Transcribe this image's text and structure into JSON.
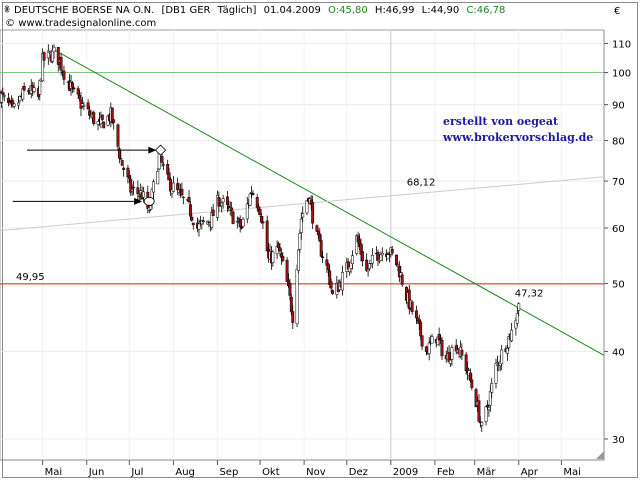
{
  "header": {
    "title": "DEUTSCHE BOERSE NA O.N.",
    "exchange": "[DB1 GER",
    "period": "Täglich]",
    "date": "01.04.2009",
    "open": "O:45,80",
    "high": "H:46,99",
    "low": "L:44,90",
    "close": "C:46,78",
    "website": "www.tradesignalonline.com",
    "currency": "€"
  },
  "credits": {
    "line1": "erstellt von oegeat",
    "line2": "www.brokervorschlag.de"
  },
  "colors": {
    "up_candle": "#ffffff",
    "down_candle": "#a01010",
    "trendline": "#1a8a1a",
    "support_line": "#e02010",
    "upper_line": "#7fc97f",
    "gray_line": "#cccccc",
    "arrow": "#000000",
    "credit_text": "#1a1aa0"
  },
  "chart_data": {
    "type": "candlestick",
    "yscale": "log",
    "ylim": [
      28,
      115
    ],
    "yticks": [
      30,
      40,
      50,
      60,
      70,
      80,
      90,
      100,
      110
    ],
    "xtick_labels": [
      "Mai",
      "Jun",
      "Jul",
      "Aug",
      "Sep",
      "Okt",
      "Nov",
      "Dez",
      "2009",
      "Feb",
      "Mär",
      "Apr",
      "Mai"
    ],
    "xtick_dates": [
      "2008-05-01",
      "2008-06-01",
      "2008-07-01",
      "2008-08-01",
      "2008-09-01",
      "2008-10-01",
      "2008-11-01",
      "2008-12-01",
      "2009-01-01",
      "2009-02-01",
      "2009-03-01",
      "2009-04-01",
      "2009-05-01"
    ],
    "xlim": [
      "2008-04-01",
      "2009-05-31"
    ],
    "grid": true,
    "horizontal_lines": [
      {
        "value": 49.95,
        "label": "49,95",
        "color": "#e02010"
      },
      {
        "value": 100,
        "label": "",
        "color": "#7fc97f"
      }
    ],
    "vertical_lines": [
      {
        "date": "2009-01-01",
        "color": "#cccccc"
      }
    ],
    "trendlines": [
      {
        "start": {
          "date": "2008-05-10",
          "value": 107.5
        },
        "end": {
          "date": "2009-05-31",
          "value": 39.5
        },
        "color": "#1a8a1a"
      },
      {
        "start": {
          "date": "2008-04-01",
          "value": 59.5
        },
        "end": {
          "date": "2009-05-31",
          "value": 71
        },
        "color": "#cccccc"
      }
    ],
    "annotations": [
      {
        "text": "68,12",
        "date": "2009-01-15",
        "value": 68.12,
        "color": "#bbbbbb"
      },
      {
        "text": "47,32",
        "date": "2009-04-01",
        "value": 47.32,
        "color": "#1a8a1a"
      }
    ],
    "markers": [
      {
        "date": "2008-07-15",
        "value": 65.5,
        "shape": "circle"
      },
      {
        "date": "2008-07-23",
        "value": 77.5,
        "shape": "diamond"
      }
    ],
    "arrows": [
      {
        "from_date": "2008-04-10",
        "to_date": "2008-07-10",
        "value": 65.5
      },
      {
        "from_date": "2008-04-20",
        "to_date": "2008-07-20",
        "value": 77.5
      }
    ],
    "anchors": [
      [
        "2008-04-01",
        93
      ],
      [
        "2008-04-10",
        88
      ],
      [
        "2008-04-20",
        95
      ],
      [
        "2008-04-28",
        92
      ],
      [
        "2008-05-01",
        104
      ],
      [
        "2008-05-10",
        107
      ],
      [
        "2008-05-16",
        100
      ],
      [
        "2008-05-23",
        93
      ],
      [
        "2008-06-01",
        88
      ],
      [
        "2008-06-10",
        84
      ],
      [
        "2008-06-18",
        87
      ],
      [
        "2008-06-25",
        75
      ],
      [
        "2008-07-02",
        68
      ],
      [
        "2008-07-10",
        67
      ],
      [
        "2008-07-15",
        63
      ],
      [
        "2008-07-22",
        76
      ],
      [
        "2008-07-28",
        70
      ],
      [
        "2008-08-05",
        67
      ],
      [
        "2008-08-12",
        64
      ],
      [
        "2008-08-18",
        60
      ],
      [
        "2008-08-28",
        62
      ],
      [
        "2008-09-02",
        66
      ],
      [
        "2008-09-10",
        63
      ],
      [
        "2008-09-18",
        60
      ],
      [
        "2008-09-25",
        68
      ],
      [
        "2008-10-01",
        64
      ],
      [
        "2008-10-07",
        54
      ],
      [
        "2008-10-14",
        56
      ],
      [
        "2008-10-20",
        50
      ],
      [
        "2008-10-24",
        45
      ],
      [
        "2008-10-30",
        62
      ],
      [
        "2008-11-04",
        67
      ],
      [
        "2008-11-10",
        58
      ],
      [
        "2008-11-18",
        52
      ],
      [
        "2008-11-21",
        48
      ],
      [
        "2008-11-26",
        50
      ],
      [
        "2008-12-02",
        53
      ],
      [
        "2008-12-08",
        58
      ],
      [
        "2008-12-15",
        52
      ],
      [
        "2008-12-22",
        55
      ],
      [
        "2008-12-30",
        56
      ],
      [
        "2009-01-06",
        53
      ],
      [
        "2009-01-12",
        48
      ],
      [
        "2009-01-19",
        44
      ],
      [
        "2009-01-26",
        40
      ],
      [
        "2009-02-02",
        42
      ],
      [
        "2009-02-09",
        39
      ],
      [
        "2009-02-16",
        41
      ],
      [
        "2009-02-23",
        38
      ],
      [
        "2009-03-02",
        34
      ],
      [
        "2009-03-06",
        31
      ],
      [
        "2009-03-11",
        34
      ],
      [
        "2009-03-16",
        38
      ],
      [
        "2009-03-23",
        41
      ],
      [
        "2009-03-28",
        43
      ],
      [
        "2009-04-01",
        46.78
      ]
    ],
    "last_candle": {
      "date": "2009-04-01",
      "open": 45.8,
      "high": 46.99,
      "low": 44.9,
      "close": 46.78
    }
  }
}
